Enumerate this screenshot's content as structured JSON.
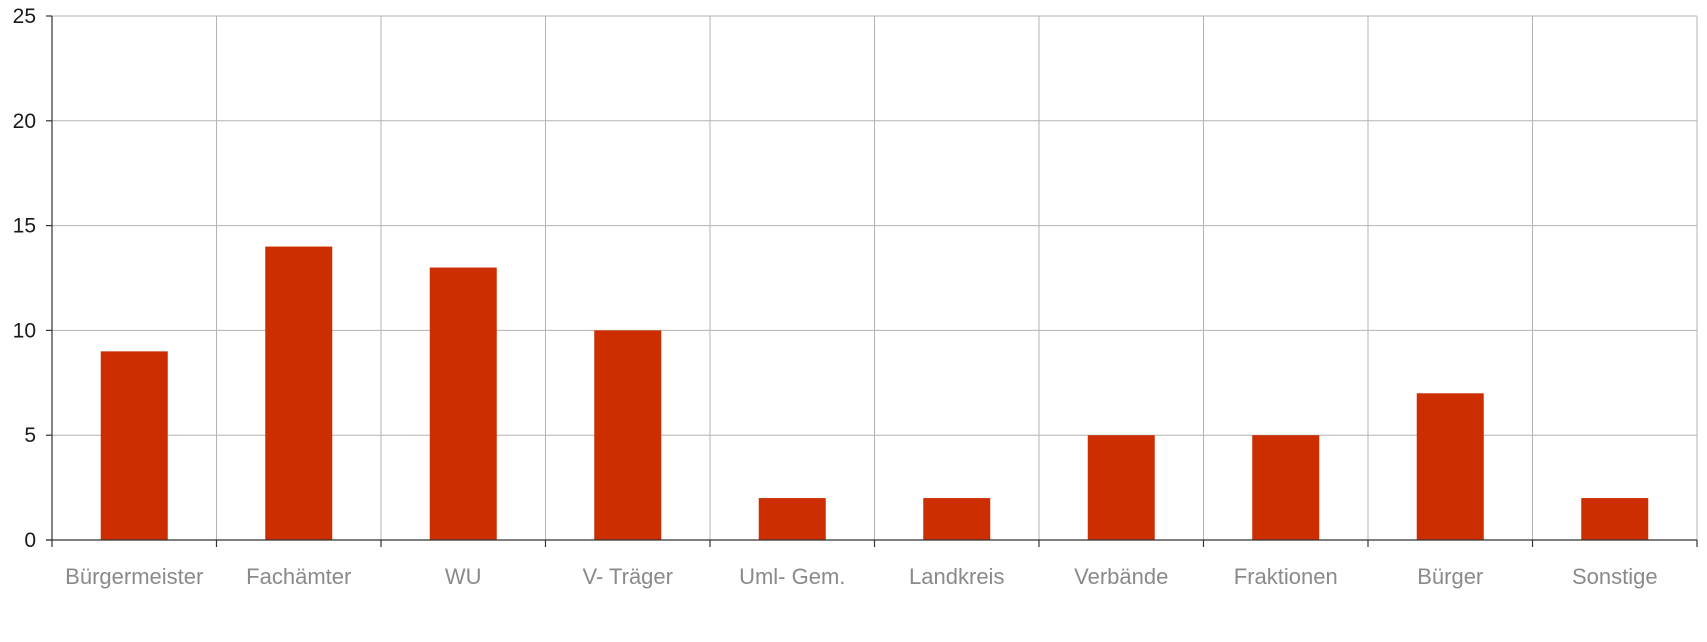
{
  "chart_data": {
    "type": "bar",
    "categories": [
      "Bürgermeister",
      "Fachämter",
      "WU",
      "V- Träger",
      "Uml- Gem.",
      "Landkreis",
      "Verbände",
      "Fraktionen",
      "Bürger",
      "Sonstige"
    ],
    "values": [
      9,
      14,
      13,
      10,
      2,
      2,
      5,
      5,
      7,
      2
    ],
    "ylim": [
      0,
      25
    ],
    "yticks": [
      0,
      5,
      10,
      15,
      20,
      25
    ],
    "grid": true,
    "bar_color": "#cc2e00",
    "grid_color": "#b3b3b3"
  }
}
